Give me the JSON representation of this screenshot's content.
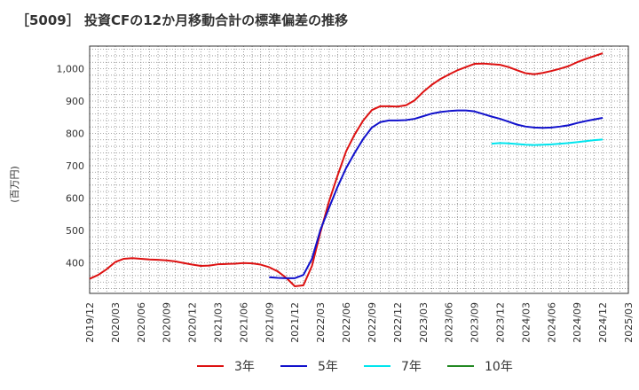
{
  "chart_data": {
    "type": "line",
    "title": "［5009］ 投資CFの12か月移動合計の標準偏差の推移",
    "ylabel": "(百万円)",
    "xlabel": "",
    "ylim": [
      305,
      1070
    ],
    "yticks": [
      400,
      500,
      600,
      700,
      800,
      900,
      1000
    ],
    "ytick_labels": [
      "400",
      "500",
      "600",
      "700",
      "800",
      "900",
      "1,000"
    ],
    "xlim": [
      "2019-12",
      "2025-03"
    ],
    "xticks": [
      "2019/12",
      "2020/03",
      "2020/06",
      "2020/09",
      "2020/12",
      "2021/03",
      "2021/06",
      "2021/09",
      "2021/12",
      "2022/03",
      "2022/06",
      "2022/09",
      "2022/12",
      "2023/03",
      "2023/06",
      "2023/09",
      "2023/12",
      "2024/03",
      "2024/06",
      "2024/09",
      "2024/12",
      "2025/03"
    ],
    "grid": true,
    "legend_position": "bottom",
    "series": [
      {
        "name": "3年",
        "color": "#dd1111",
        "points": [
          [
            "2019-12",
            350
          ],
          [
            "2020-01",
            362
          ],
          [
            "2020-02",
            380
          ],
          [
            "2020-03",
            402
          ],
          [
            "2020-04",
            412
          ],
          [
            "2020-05",
            414
          ],
          [
            "2020-06",
            412
          ],
          [
            "2020-07",
            410
          ],
          [
            "2020-08",
            409
          ],
          [
            "2020-09",
            407
          ],
          [
            "2020-10",
            404
          ],
          [
            "2020-11",
            399
          ],
          [
            "2020-12",
            394
          ],
          [
            "2021-01",
            390
          ],
          [
            "2021-02",
            391
          ],
          [
            "2021-03",
            395
          ],
          [
            "2021-04",
            396
          ],
          [
            "2021-05",
            397
          ],
          [
            "2021-06",
            399
          ],
          [
            "2021-07",
            398
          ],
          [
            "2021-08",
            394
          ],
          [
            "2021-09",
            386
          ],
          [
            "2021-10",
            373
          ],
          [
            "2021-11",
            353
          ],
          [
            "2021-12",
            327
          ],
          [
            "2022-01",
            330
          ],
          [
            "2022-02",
            390
          ],
          [
            "2022-03",
            495
          ],
          [
            "2022-04",
            590
          ],
          [
            "2022-05",
            670
          ],
          [
            "2022-06",
            745
          ],
          [
            "2022-07",
            797
          ],
          [
            "2022-08",
            840
          ],
          [
            "2022-09",
            872
          ],
          [
            "2022-10",
            884
          ],
          [
            "2022-11",
            884
          ],
          [
            "2022-12",
            883
          ],
          [
            "2023-01",
            887
          ],
          [
            "2023-02",
            902
          ],
          [
            "2023-03",
            928
          ],
          [
            "2023-04",
            950
          ],
          [
            "2023-05",
            968
          ],
          [
            "2023-06",
            982
          ],
          [
            "2023-07",
            995
          ],
          [
            "2023-08",
            1005
          ],
          [
            "2023-09",
            1015
          ],
          [
            "2023-10",
            1016
          ],
          [
            "2023-11",
            1014
          ],
          [
            "2023-12",
            1012
          ],
          [
            "2024-01",
            1005
          ],
          [
            "2024-02",
            995
          ],
          [
            "2024-03",
            986
          ],
          [
            "2024-04",
            983
          ],
          [
            "2024-05",
            987
          ],
          [
            "2024-06",
            993
          ],
          [
            "2024-07",
            1000
          ],
          [
            "2024-08",
            1008
          ],
          [
            "2024-09",
            1020
          ],
          [
            "2024-10",
            1030
          ],
          [
            "2024-11",
            1039
          ],
          [
            "2024-12",
            1048
          ]
        ]
      },
      {
        "name": "5年",
        "color": "#1111cc",
        "points": [
          [
            "2021-09",
            355
          ],
          [
            "2021-10",
            353
          ],
          [
            "2021-11",
            352
          ],
          [
            "2021-12",
            352
          ],
          [
            "2022-01",
            362
          ],
          [
            "2022-02",
            412
          ],
          [
            "2022-03",
            502
          ],
          [
            "2022-04",
            570
          ],
          [
            "2022-05",
            635
          ],
          [
            "2022-06",
            693
          ],
          [
            "2022-07",
            740
          ],
          [
            "2022-08",
            783
          ],
          [
            "2022-09",
            818
          ],
          [
            "2022-10",
            835
          ],
          [
            "2022-11",
            840
          ],
          [
            "2022-12",
            840
          ],
          [
            "2023-01",
            841
          ],
          [
            "2023-02",
            845
          ],
          [
            "2023-03",
            853
          ],
          [
            "2023-04",
            861
          ],
          [
            "2023-05",
            866
          ],
          [
            "2023-06",
            869
          ],
          [
            "2023-07",
            871
          ],
          [
            "2023-08",
            871
          ],
          [
            "2023-09",
            868
          ],
          [
            "2023-10",
            860
          ],
          [
            "2023-11",
            852
          ],
          [
            "2023-12",
            845
          ],
          [
            "2024-01",
            836
          ],
          [
            "2024-02",
            827
          ],
          [
            "2024-03",
            821
          ],
          [
            "2024-04",
            818
          ],
          [
            "2024-05",
            817
          ],
          [
            "2024-06",
            818
          ],
          [
            "2024-07",
            821
          ],
          [
            "2024-08",
            825
          ],
          [
            "2024-09",
            832
          ],
          [
            "2024-10",
            838
          ],
          [
            "2024-11",
            843
          ],
          [
            "2024-12",
            848
          ]
        ]
      },
      {
        "name": "7年",
        "color": "#00e5ee",
        "points": [
          [
            "2023-11",
            768
          ],
          [
            "2023-12",
            770
          ],
          [
            "2024-01",
            769
          ],
          [
            "2024-02",
            767
          ],
          [
            "2024-03",
            765
          ],
          [
            "2024-04",
            764
          ],
          [
            "2024-05",
            765
          ],
          [
            "2024-06",
            766
          ],
          [
            "2024-07",
            768
          ],
          [
            "2024-08",
            770
          ],
          [
            "2024-09",
            773
          ],
          [
            "2024-10",
            776
          ],
          [
            "2024-11",
            779
          ],
          [
            "2024-12",
            781
          ]
        ]
      },
      {
        "name": "10年",
        "color": "#228822",
        "points": []
      }
    ]
  }
}
